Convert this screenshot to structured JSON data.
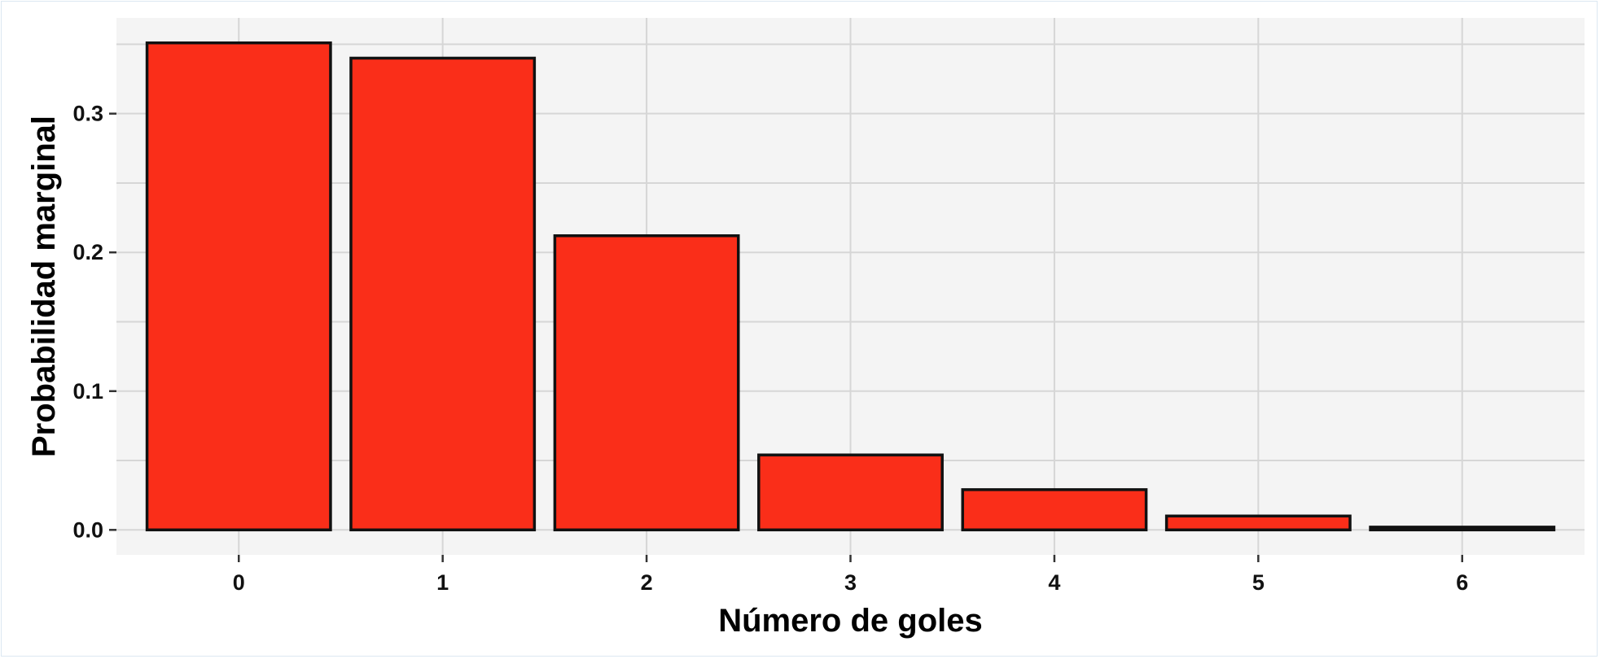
{
  "chart_data": {
    "type": "bar",
    "title": "",
    "xlabel": "Número de goles",
    "ylabel": "Probabilidad marginal",
    "categories": [
      "0",
      "1",
      "2",
      "3",
      "4",
      "5",
      "6"
    ],
    "values": [
      0.351,
      0.34,
      0.212,
      0.054,
      0.029,
      0.01,
      0.002
    ],
    "ylim": [
      -0.018,
      0.369
    ],
    "yticks": [
      0.0,
      0.1,
      0.2,
      0.3
    ],
    "ytick_labels": [
      "0.0",
      "0.1",
      "0.2",
      "0.3"
    ],
    "grid": true,
    "legend": "none",
    "colors": {
      "bar_fill": "#fa2e19",
      "bar_stroke": "#111111",
      "panel_background": "#f4f4f4",
      "grid": "#d6d6d6",
      "tick": "#333333"
    }
  }
}
